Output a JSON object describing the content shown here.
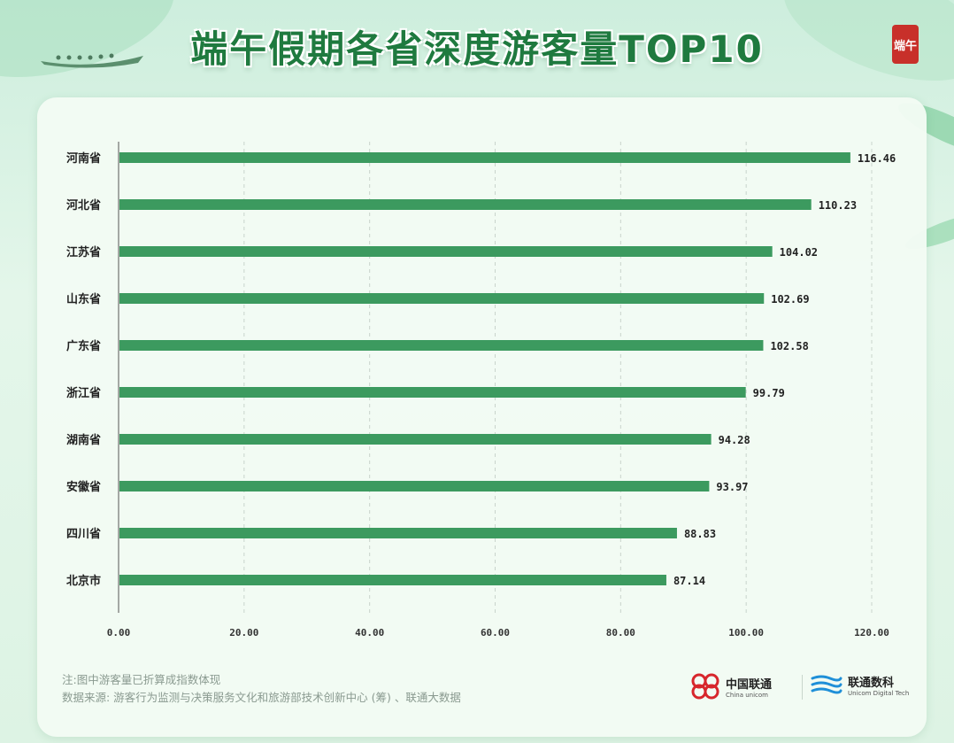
{
  "title": "端午假期各省深度游客量TOP10",
  "stamp_text": "端午",
  "chart_data": {
    "type": "bar",
    "orientation": "horizontal",
    "categories": [
      "河南省",
      "河北省",
      "江苏省",
      "山东省",
      "广东省",
      "浙江省",
      "湖南省",
      "安徽省",
      "四川省",
      "北京市"
    ],
    "values": [
      116.46,
      110.23,
      104.02,
      102.69,
      102.58,
      99.79,
      94.28,
      93.97,
      88.83,
      87.14
    ],
    "value_labels": [
      "116.46",
      "110.23",
      "104.02",
      "102.69",
      "102.58",
      "99.79",
      "94.28",
      "93.97",
      "88.83",
      "87.14"
    ],
    "xlim": [
      0,
      120
    ],
    "xticks": [
      "0.00",
      "20.00",
      "40.00",
      "60.00",
      "80.00",
      "100.00",
      "120.00"
    ],
    "xtick_values": [
      0,
      20,
      40,
      60,
      80,
      100,
      120
    ],
    "grid": "vertical dashed",
    "bar_color": "#3c9a5f"
  },
  "footnotes": {
    "note": "注:图中游客量已折算成指数体现",
    "source": "数据来源: 游客行为监测与决策服务文化和旅游部技术创新中心 (筹) 、联通大数据"
  },
  "logos": {
    "china_unicom_cn": "中国联通",
    "china_unicom_en": "China unicom",
    "unicom_digital_cn": "联通数科",
    "unicom_digital_en": "Unicom Digital Tech"
  },
  "colors": {
    "title": "#1f7a3f",
    "unicom_red": "#d7262c",
    "digital_blue": "#1f8fd8"
  }
}
